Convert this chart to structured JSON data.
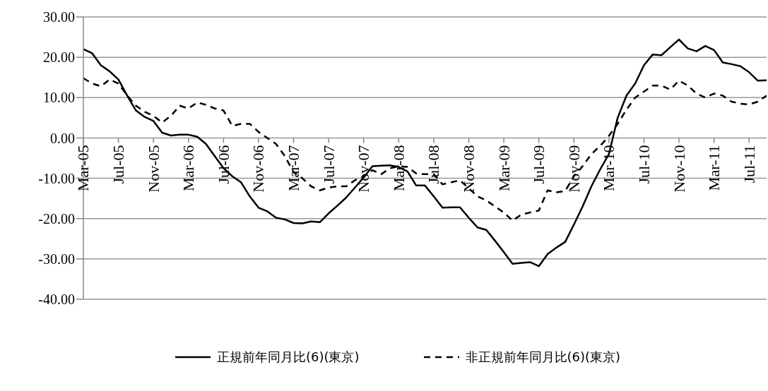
{
  "chart_data": {
    "type": "line",
    "categories": [
      "Mar-05",
      null,
      null,
      null,
      "Jul-05",
      null,
      null,
      null,
      "Nov-05",
      null,
      null,
      null,
      "Mar-06",
      null,
      null,
      null,
      "Jul-06",
      null,
      null,
      null,
      "Nov-06",
      null,
      null,
      null,
      "Mar-07",
      null,
      null,
      null,
      "Jul-07",
      null,
      null,
      null,
      "Nov-07",
      null,
      null,
      null,
      "Mar-08",
      null,
      null,
      null,
      "Jul-08",
      null,
      null,
      null,
      "Nov-08",
      null,
      null,
      null,
      "Mar-09",
      null,
      null,
      null,
      "Jul-09",
      null,
      null,
      null,
      "Nov-09",
      null,
      null,
      null,
      "Mar-10",
      null,
      null,
      null,
      "Jul-10",
      null,
      null,
      null,
      "Nov-10",
      null,
      null,
      null,
      "Mar-11",
      null,
      null,
      null,
      "Jul-11",
      null,
      null
    ],
    "series": [
      {
        "name": "正規前年同月比(6)(東京)",
        "color": "#000000",
        "line_style": "solid",
        "values": [
          22.0,
          21.0,
          18.0,
          16.5,
          14.5,
          10.5,
          6.8,
          5.2,
          4.2,
          1.3,
          0.6,
          0.8,
          0.8,
          0.3,
          -1.5,
          -4.5,
          -7.5,
          -9.5,
          -11.0,
          -14.5,
          -17.3,
          -18.2,
          -19.8,
          -20.2,
          -21.1,
          -21.2,
          -20.7,
          -20.9,
          -18.7,
          -16.8,
          -14.8,
          -12.3,
          -9.8,
          -7.0,
          -6.9,
          -6.8,
          -7.2,
          -8.3,
          -11.8,
          -11.8,
          -14.5,
          -17.3,
          -17.2,
          -17.2,
          -19.8,
          -22.2,
          -22.8,
          -25.5,
          -28.3,
          -31.2,
          -31.0,
          -30.8,
          -31.8,
          -28.8,
          -27.2,
          -25.8,
          -21.5,
          -17.0,
          -12.0,
          -7.8,
          -4.0,
          5.0,
          10.5,
          13.5,
          18.0,
          20.7,
          20.5,
          22.5,
          24.4,
          22.2,
          21.5,
          22.8,
          21.8,
          18.7,
          18.3,
          17.8,
          16.3,
          14.2,
          14.3
        ]
      },
      {
        "name": "非正規前年同月比(6)(東京)",
        "color": "#000000",
        "line_style": "dashed",
        "values": [
          14.8,
          13.5,
          12.8,
          14.5,
          13.5,
          10.5,
          8.0,
          6.5,
          5.5,
          3.8,
          5.5,
          8.0,
          7.3,
          8.8,
          8.2,
          7.3,
          6.8,
          3.0,
          3.5,
          3.5,
          1.5,
          0.0,
          -1.5,
          -4.5,
          -8.5,
          -10.0,
          -12.0,
          -13.0,
          -12.3,
          -12.0,
          -12.0,
          -10.5,
          -9.5,
          -8.0,
          -9.0,
          -7.5,
          -7.0,
          -7.2,
          -8.8,
          -9.0,
          -9.0,
          -11.5,
          -11.0,
          -10.5,
          -12.5,
          -14.5,
          -15.5,
          -17.0,
          -18.5,
          -20.5,
          -19.0,
          -18.5,
          -18.0,
          -13.0,
          -13.5,
          -13.2,
          -9.5,
          -7.0,
          -4.0,
          -2.0,
          0.5,
          3.5,
          7.0,
          10.0,
          11.5,
          13.0,
          13.0,
          12.0,
          14.2,
          13.0,
          11.0,
          10.0,
          11.0,
          10.5,
          9.0,
          8.5,
          8.3,
          9.0,
          10.5
        ]
      }
    ],
    "ylim": [
      -40,
      30
    ],
    "yticks": [
      {
        "value": -40,
        "label": "-40.00"
      },
      {
        "value": -30,
        "label": "-30.00"
      },
      {
        "value": -20,
        "label": "-20.00"
      },
      {
        "value": -10,
        "label": "-10.00"
      },
      {
        "value": 0,
        "label": "0.00"
      },
      {
        "value": 10,
        "label": "10.00"
      },
      {
        "value": 20,
        "label": "20.00"
      },
      {
        "value": 30,
        "label": "30.00"
      }
    ],
    "grid": "y",
    "legend": "bottom",
    "marker": "none"
  }
}
